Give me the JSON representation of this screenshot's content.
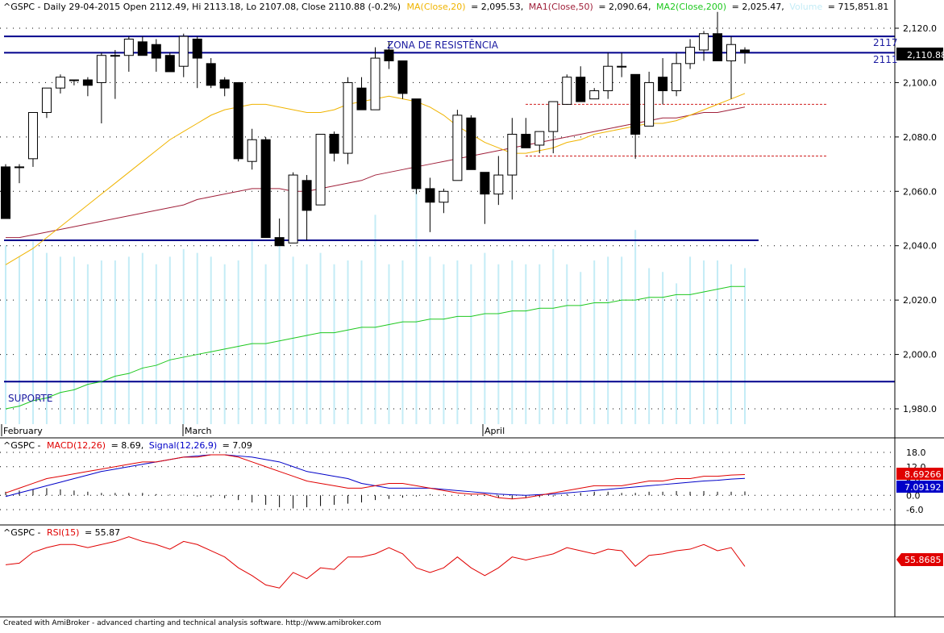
{
  "title": {
    "symbol": "^GSPC",
    "prefix": "^GSPC - Daily 29-04-2015 Open 2112.49, Hi 2113.18, Lo 2107.08, Close 2110.88 (-0.2%)",
    "ma_label": "MA(Close,20)",
    "ma_value": "= 2,095.53,",
    "ma1_label": "MA1(Close,50)",
    "ma1_value": "= 2,090.64,",
    "ma2_label": "MA2(Close,200)",
    "ma2_value": "= 2,025.47,",
    "volume_label": "Volume",
    "volume_value": "= 715,851.81"
  },
  "annotations": {
    "resistance_label": "ZONA DE RESISTÊNCIA",
    "support_label": "SUPORTE",
    "level_2117": "2117",
    "level_2111": "2111",
    "last_price_badge": "2,110.88"
  },
  "price_axis": {
    "ticks": [
      "2,120.0",
      "2,100.0",
      "2,080.0",
      "2,060.0",
      "2,040.0",
      "2,020.0",
      "2,000.0",
      "1,980.0"
    ]
  },
  "date_axis": {
    "labels": [
      "February",
      "March",
      "April"
    ]
  },
  "macd_panel": {
    "prefix": "^GSPC -",
    "macd_label": "MACD(12,26)",
    "macd_value": "= 8.69,",
    "signal_label": "Signal(12,26,9)",
    "signal_value": "= 7.09",
    "ticks": [
      "18.0",
      "12.0",
      "6.0",
      "0.0",
      "-6.0"
    ],
    "macd_badge": "8.69266",
    "signal_badge": "7.09192"
  },
  "rsi_panel": {
    "prefix": "^GSPC -",
    "rsi_label": "RSI(15)",
    "rsi_value": "= 55.87",
    "rsi_badge": "55.8685"
  },
  "footer": "Created with AmiBroker - advanced charting and technical analysis software. http://www.amibroker.com",
  "colors": {
    "up": "#ffffff",
    "down": "#000000",
    "ma20": "#f0b400",
    "ma50": "#a0203a",
    "ma200": "#1ec81e",
    "volume": "#c4ecf6",
    "levels": "#00008c",
    "macd": "#e00000",
    "signal": "#0000c8",
    "rsi": "#e00000"
  },
  "chart_data": [
    {
      "type": "candlestick",
      "ylim": [
        1975,
        2130
      ],
      "x_labels": [
        "February",
        "March",
        "April"
      ],
      "ohlc": [
        [
          2069,
          2070,
          2050,
          2050
        ],
        [
          2069,
          2070,
          2063,
          2069
        ],
        [
          2072,
          2089,
          2069,
          2089
        ],
        [
          2089,
          2098,
          2087,
          2098
        ],
        [
          2098,
          2103,
          2096,
          2102
        ],
        [
          2101,
          2101,
          2099,
          2101
        ],
        [
          2101,
          2102,
          2095,
          2099
        ],
        [
          2100,
          2111,
          2085,
          2110
        ],
        [
          2110,
          2112,
          2094,
          2110
        ],
        [
          2110,
          2117,
          2104,
          2116
        ],
        [
          2115,
          2117,
          2110,
          2110
        ],
        [
          2114,
          2116,
          2104,
          2109
        ],
        [
          2110,
          2111,
          2104,
          2104
        ],
        [
          2106,
          2118,
          2102,
          2117
        ],
        [
          2116,
          2117,
          2098,
          2109
        ],
        [
          2107,
          2109,
          2098,
          2099
        ],
        [
          2101,
          2102,
          2095,
          2098
        ],
        [
          2100,
          2100,
          2071,
          2072
        ],
        [
          2071,
          2083,
          2068,
          2079
        ],
        [
          2079,
          2080,
          2043,
          2043
        ],
        [
          2043,
          2050,
          2040,
          2040
        ],
        [
          2041,
          2067,
          2041,
          2066
        ],
        [
          2064,
          2066,
          2042,
          2053
        ],
        [
          2055,
          2081,
          2055,
          2081
        ],
        [
          2081,
          2082,
          2071,
          2074
        ],
        [
          2074,
          2102,
          2070,
          2100
        ],
        [
          2098,
          2102,
          2090,
          2090
        ],
        [
          2090,
          2113,
          2090,
          2109
        ],
        [
          2112,
          2115,
          2105,
          2108
        ],
        [
          2108,
          2108,
          2094,
          2096
        ],
        [
          2094,
          2094,
          2059,
          2061
        ],
        [
          2061,
          2065,
          2045,
          2056
        ],
        [
          2056,
          2061,
          2052,
          2060
        ],
        [
          2064,
          2090,
          2064,
          2088
        ],
        [
          2087,
          2088,
          2068,
          2068
        ],
        [
          2067,
          2067,
          2048,
          2059
        ],
        [
          2059,
          2073,
          2055,
          2066
        ],
        [
          2066,
          2087,
          2057,
          2081
        ],
        [
          2081,
          2087,
          2076,
          2076
        ],
        [
          2077,
          2082,
          2074,
          2082
        ],
        [
          2082,
          2093,
          2074,
          2093
        ],
        [
          2092,
          2103,
          2092,
          2102
        ],
        [
          2102,
          2106,
          2093,
          2093
        ],
        [
          2094,
          2098,
          2095,
          2097
        ],
        [
          2097,
          2111,
          2094,
          2106
        ],
        [
          2106,
          2111,
          2102,
          2106
        ],
        [
          2103,
          2103,
          2072,
          2081
        ],
        [
          2084,
          2104,
          2084,
          2100
        ],
        [
          2102,
          2109,
          2092,
          2097
        ],
        [
          2097,
          2111,
          2095,
          2107
        ],
        [
          2107,
          2116,
          2105,
          2113
        ],
        [
          2112,
          2119,
          2108,
          2118
        ],
        [
          2118,
          2126,
          2108,
          2108
        ],
        [
          2108,
          2117,
          2094,
          2114
        ],
        [
          2112,
          2113,
          2107,
          2111
        ]
      ],
      "ma20": [
        2033,
        2036,
        2039,
        2043,
        2047,
        2051,
        2055,
        2059,
        2063,
        2067,
        2071,
        2075,
        2079,
        2082,
        2085,
        2088,
        2090,
        2091,
        2092,
        2092,
        2091,
        2090,
        2089,
        2089,
        2090,
        2092,
        2093,
        2094,
        2095,
        2094,
        2093,
        2091,
        2088,
        2084,
        2081,
        2078,
        2076,
        2074,
        2074,
        2075,
        2076,
        2078,
        2079,
        2081,
        2082,
        2083,
        2084,
        2085,
        2085,
        2086,
        2088,
        2090,
        2092,
        2094,
        2096
      ],
      "ma50": [
        2043,
        2043,
        2044,
        2045,
        2046,
        2047,
        2048,
        2049,
        2050,
        2051,
        2052,
        2053,
        2054,
        2055,
        2057,
        2058,
        2059,
        2060,
        2061,
        2061,
        2061,
        2060,
        2060,
        2061,
        2062,
        2063,
        2064,
        2066,
        2067,
        2068,
        2069,
        2070,
        2071,
        2072,
        2073,
        2074,
        2075,
        2076,
        2077,
        2078,
        2079,
        2080,
        2081,
        2082,
        2083,
        2084,
        2085,
        2086,
        2087,
        2087,
        2088,
        2089,
        2089,
        2090,
        2091
      ],
      "ma200": [
        1980,
        1981,
        1983,
        1984,
        1986,
        1987,
        1989,
        1990,
        1992,
        1993,
        1995,
        1996,
        1998,
        1999,
        2000,
        2001,
        2002,
        2003,
        2004,
        2004,
        2005,
        2006,
        2007,
        2008,
        2008,
        2009,
        2010,
        2010,
        2011,
        2012,
        2012,
        2013,
        2013,
        2014,
        2014,
        2015,
        2015,
        2016,
        2016,
        2017,
        2017,
        2018,
        2018,
        2019,
        2019,
        2020,
        2020,
        2021,
        2021,
        2022,
        2022,
        2023,
        2024,
        2025,
        2025
      ],
      "volume_rel": [
        0.47,
        0.44,
        0.48,
        0.45,
        0.44,
        0.44,
        0.42,
        0.43,
        0.43,
        0.44,
        0.45,
        0.42,
        0.44,
        0.46,
        0.45,
        0.44,
        0.42,
        0.43,
        0.48,
        0.42,
        0.47,
        0.44,
        0.42,
        0.45,
        0.42,
        0.43,
        0.43,
        0.55,
        0.42,
        0.43,
        0.8,
        0.44,
        0.42,
        0.43,
        0.42,
        0.45,
        0.42,
        0.43,
        0.42,
        0.42,
        0.46,
        0.42,
        0.4,
        0.43,
        0.44,
        0.44,
        0.51,
        0.41,
        0.4,
        0.37,
        0.44,
        0.43,
        0.43,
        0.42,
        0.41
      ],
      "levels": {
        "resistance_top": 2117,
        "resistance_bottom": 2111,
        "support": 2042,
        "support_low": 1990,
        "dashed_upper": 2092,
        "dashed_lower": 2073
      }
    },
    {
      "type": "line",
      "name": "MACD panel",
      "ylim": [
        -9,
        19
      ],
      "macd": [
        1,
        3,
        5,
        7,
        8,
        9,
        10,
        11,
        12,
        13,
        14,
        14,
        15,
        16,
        16,
        17,
        17,
        16,
        14,
        12,
        10,
        8,
        6,
        5,
        4,
        3,
        3,
        4,
        5,
        5,
        4,
        3,
        2,
        1,
        0.5,
        0.5,
        -1,
        -1.5,
        -1,
        0,
        1,
        2,
        3,
        4,
        4,
        4,
        5,
        6,
        6,
        7,
        7,
        8,
        8,
        8.5,
        8.7
      ],
      "signal": [
        -0.5,
        1,
        2.5,
        4,
        5.5,
        7,
        8.5,
        10,
        11,
        12,
        13,
        14,
        15,
        16,
        16.5,
        17,
        17,
        16.5,
        16,
        15,
        14,
        12,
        10,
        9,
        8,
        7,
        5,
        4,
        3,
        3,
        3,
        3,
        2.5,
        2,
        1.5,
        1,
        0.5,
        0.2,
        0,
        0.3,
        0.5,
        1,
        1.5,
        2,
        2.5,
        3,
        3.5,
        4,
        4.5,
        5,
        5.5,
        6,
        6.3,
        6.8,
        7.1
      ],
      "histogram": [
        1.5,
        2,
        2.5,
        3,
        2.5,
        2,
        1.5,
        1,
        1,
        1,
        1,
        0.5,
        0.3,
        0.2,
        -0.5,
        -0.8,
        -1.2,
        -2,
        -3,
        -4,
        -5,
        -5.5,
        -5,
        -4.5,
        -4,
        -3.5,
        -3,
        -2,
        -1.5,
        -1,
        -0.5,
        0.5,
        0.3,
        0,
        -0.2,
        -0.3,
        -1,
        -1.5,
        -1.2,
        -0.8,
        -0.5,
        0.5,
        1,
        1.5,
        1.5,
        1,
        1,
        1.5,
        1.5,
        1.8,
        1.5,
        1.8,
        1.5,
        1.5,
        1.6
      ]
    },
    {
      "type": "line",
      "name": "RSI panel",
      "ylim": [
        25,
        80
      ],
      "rsi": [
        57,
        58,
        65,
        68,
        70,
        70,
        68,
        70,
        72,
        75,
        72,
        70,
        67,
        72,
        70,
        66,
        62,
        55,
        50,
        44,
        42,
        52,
        48,
        55,
        54,
        62,
        62,
        64,
        68,
        64,
        55,
        52,
        55,
        62,
        55,
        50,
        55,
        62,
        60,
        62,
        64,
        68,
        66,
        64,
        67,
        66,
        56,
        63,
        64,
        66,
        67,
        70,
        66,
        68,
        55.9
      ]
    }
  ]
}
